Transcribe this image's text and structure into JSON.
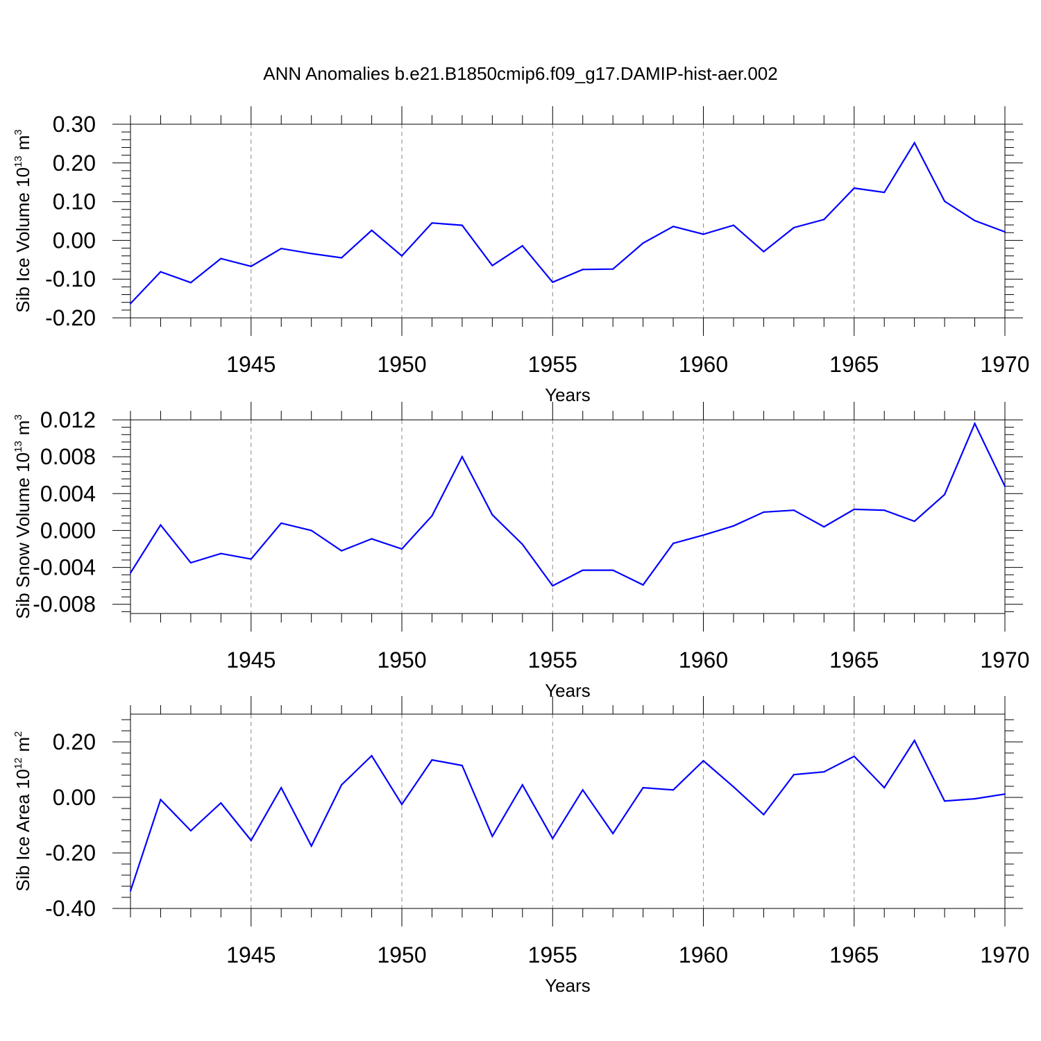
{
  "title": "ANN Anomalies b.e21.B1850cmip6.f09_g17.DAMIP-hist-aer.002",
  "colors": {
    "line": "#0000ff",
    "axis": "#000000",
    "grid": "#888888"
  },
  "chart_data": [
    {
      "type": "line",
      "ylabel": "Sib Ice Volume 10",
      "ylabel_exp": "13",
      "ylabel_unit": "m",
      "ylabel_unit_exp": "3",
      "xlabel": "Years",
      "xlim": [
        1941,
        1970
      ],
      "ylim": [
        -0.2,
        0.3
      ],
      "yticks": [
        -0.2,
        -0.1,
        0.0,
        0.1,
        0.2,
        0.3
      ],
      "ytick_labels": [
        "-0.20",
        "-0.10",
        "0.00",
        "0.10",
        "0.20",
        "0.30"
      ],
      "xticks": [
        1945,
        1950,
        1955,
        1960,
        1965,
        1970
      ],
      "xtick_labels": [
        "1945",
        "1950",
        "1955",
        "1960",
        "1965",
        "1970"
      ],
      "grid": "vertical dashed at major x ticks",
      "x": [
        1941,
        1942,
        1943,
        1944,
        1945,
        1946,
        1947,
        1948,
        1949,
        1950,
        1951,
        1952,
        1953,
        1954,
        1955,
        1956,
        1957,
        1958,
        1959,
        1960,
        1961,
        1962,
        1963,
        1964,
        1965,
        1966,
        1967,
        1968,
        1969,
        1970
      ],
      "y": [
        -0.163,
        -0.081,
        -0.109,
        -0.047,
        -0.067,
        -0.021,
        -0.034,
        -0.045,
        0.026,
        -0.04,
        0.045,
        0.039,
        -0.065,
        -0.014,
        -0.108,
        -0.075,
        -0.074,
        -0.007,
        0.036,
        0.016,
        0.039,
        -0.029,
        0.033,
        0.054,
        0.135,
        0.124,
        0.252,
        0.101,
        0.051,
        0.022
      ]
    },
    {
      "type": "line",
      "ylabel": "Sib Snow Volume 10",
      "ylabel_exp": "13",
      "ylabel_unit": "m",
      "ylabel_unit_exp": "3",
      "xlabel": "Years",
      "xlim": [
        1941,
        1970
      ],
      "ylim": [
        -0.009,
        0.012
      ],
      "yticks": [
        -0.008,
        -0.004,
        0.0,
        0.004,
        0.008,
        0.012
      ],
      "ytick_labels": [
        "-0.008",
        "-0.004",
        "0.000",
        "0.004",
        "0.008",
        "0.012"
      ],
      "xticks": [
        1945,
        1950,
        1955,
        1960,
        1965,
        1970
      ],
      "xtick_labels": [
        "1945",
        "1950",
        "1955",
        "1960",
        "1965",
        "1970"
      ],
      "grid": "vertical dashed at major x ticks",
      "x": [
        1941,
        1942,
        1943,
        1944,
        1945,
        1946,
        1947,
        1948,
        1949,
        1950,
        1951,
        1952,
        1953,
        1954,
        1955,
        1956,
        1957,
        1958,
        1959,
        1960,
        1961,
        1962,
        1963,
        1964,
        1965,
        1966,
        1967,
        1968,
        1969,
        1970
      ],
      "y": [
        -0.0046,
        0.0006,
        -0.0035,
        -0.0025,
        -0.0031,
        0.0008,
        0.0,
        -0.0022,
        -0.0009,
        -0.002,
        0.0016,
        0.008,
        0.0017,
        -0.0015,
        -0.006,
        -0.0043,
        -0.0043,
        -0.0059,
        -0.0014,
        -0.0005,
        0.0005,
        0.002,
        0.0022,
        0.0004,
        0.0023,
        0.0022,
        0.001,
        0.0039,
        0.0116,
        0.0048
      ]
    },
    {
      "type": "line",
      "ylabel": "Sib Ice Area 10",
      "ylabel_exp": "12",
      "ylabel_unit": "m",
      "ylabel_unit_exp": "2",
      "xlabel": "Years",
      "xlim": [
        1941,
        1970
      ],
      "ylim": [
        -0.4,
        0.3
      ],
      "yticks": [
        -0.4,
        -0.2,
        0.0,
        0.2
      ],
      "ytick_labels": [
        "-0.40",
        "-0.20",
        "0.00",
        "0.20"
      ],
      "xticks": [
        1945,
        1950,
        1955,
        1960,
        1965,
        1970
      ],
      "xtick_labels": [
        "1945",
        "1950",
        "1955",
        "1960",
        "1965",
        "1970"
      ],
      "grid": "vertical dashed at major x ticks",
      "x": [
        1941,
        1942,
        1943,
        1944,
        1945,
        1946,
        1947,
        1948,
        1949,
        1950,
        1951,
        1952,
        1953,
        1954,
        1955,
        1956,
        1957,
        1958,
        1959,
        1960,
        1961,
        1962,
        1963,
        1964,
        1965,
        1966,
        1967,
        1968,
        1969,
        1970
      ],
      "y": [
        -0.337,
        -0.008,
        -0.12,
        -0.02,
        -0.155,
        0.035,
        -0.175,
        0.045,
        0.15,
        -0.025,
        0.135,
        0.115,
        -0.14,
        0.045,
        -0.148,
        0.027,
        -0.13,
        0.035,
        0.027,
        0.132,
        0.038,
        -0.062,
        0.082,
        0.092,
        0.148,
        0.035,
        0.205,
        -0.013,
        -0.005,
        0.012
      ]
    }
  ]
}
